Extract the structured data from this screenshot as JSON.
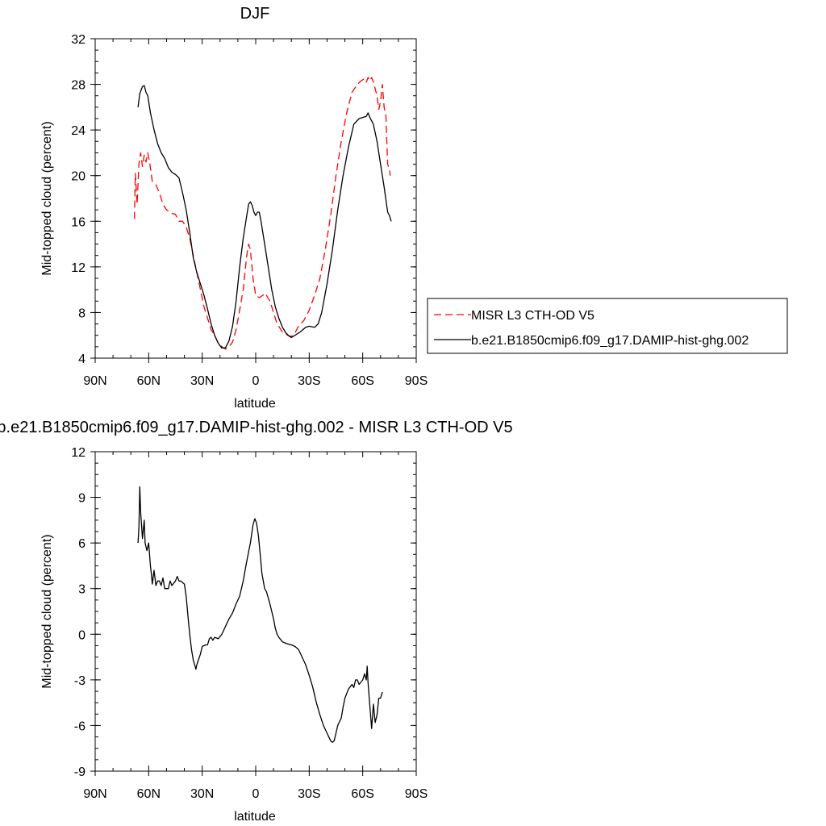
{
  "chart_data": [
    {
      "type": "line",
      "title": "DJF",
      "xlabel": "latitude",
      "ylabel": "Mid-topped cloud (percent)",
      "xlim": [
        90,
        -90
      ],
      "ylim": [
        4,
        32
      ],
      "xticks": [
        90,
        60,
        30,
        0,
        -30,
        -60,
        -90
      ],
      "xtick_labels": [
        "90N",
        "60N",
        "30N",
        "0",
        "30S",
        "60S",
        "90S"
      ],
      "yticks": [
        4,
        8,
        12,
        16,
        20,
        24,
        28,
        32
      ],
      "ytick_labels": [
        "4",
        "8",
        "12",
        "16",
        "20",
        "24",
        "28",
        "32"
      ],
      "legend": "right",
      "series": [
        {
          "name": "MISR L3 CTH-OD V5",
          "color": "#ff0000",
          "dash": "dashed",
          "points": [
            [
              68,
              16.2
            ],
            [
              67.5,
              20.2
            ],
            [
              66.5,
              17.5
            ],
            [
              65.5,
              21
            ],
            [
              64.5,
              22
            ],
            [
              63.5,
              20.8
            ],
            [
              62.5,
              21.8
            ],
            [
              61.5,
              21.2
            ],
            [
              60.5,
              22
            ],
            [
              59.5,
              21.2
            ],
            [
              58,
              19.5
            ],
            [
              56,
              19.2
            ],
            [
              54,
              18.5
            ],
            [
              52,
              17.5
            ],
            [
              50,
              17
            ],
            [
              47,
              16.7
            ],
            [
              45,
              16.6
            ],
            [
              43,
              16
            ],
            [
              41,
              16
            ],
            [
              39,
              15.5
            ],
            [
              37,
              14.5
            ],
            [
              35,
              13
            ],
            [
              33,
              11.5
            ],
            [
              31,
              10
            ],
            [
              29,
              8.5
            ],
            [
              27,
              7.5
            ],
            [
              25,
              6.5
            ],
            [
              23,
              6
            ],
            [
              21,
              5.3
            ],
            [
              19,
              5
            ],
            [
              17,
              4.8
            ],
            [
              15,
              5
            ],
            [
              13,
              5.4
            ],
            [
              11,
              6.5
            ],
            [
              9,
              8.2
            ],
            [
              7,
              10
            ],
            [
              5,
              13
            ],
            [
              4,
              14
            ],
            [
              3,
              13.5
            ],
            [
              1.5,
              11
            ],
            [
              0,
              9.5
            ],
            [
              -2,
              9.3
            ],
            [
              -4,
              9.5
            ],
            [
              -5,
              9.7
            ],
            [
              -6,
              9.5
            ],
            [
              -8,
              9
            ],
            [
              -10,
              8
            ],
            [
              -12,
              7
            ],
            [
              -15,
              6.3
            ],
            [
              -18,
              6
            ],
            [
              -20,
              5.9
            ],
            [
              -22,
              6.2
            ],
            [
              -24,
              6.8
            ],
            [
              -27,
              7.3
            ],
            [
              -30,
              8.2
            ],
            [
              -33,
              9.5
            ],
            [
              -36,
              11
            ],
            [
              -39,
              13.5
            ],
            [
              -42,
              16.5
            ],
            [
              -45,
              20
            ],
            [
              -48,
              23
            ],
            [
              -51,
              25.5
            ],
            [
              -54,
              27.3
            ],
            [
              -57,
              28
            ],
            [
              -59,
              28.3
            ],
            [
              -61,
              28.5
            ],
            [
              -62,
              28.2
            ],
            [
              -63,
              28.6
            ],
            [
              -64,
              28.3
            ],
            [
              -65,
              28.6
            ],
            [
              -66,
              28.2
            ],
            [
              -68,
              27
            ],
            [
              -69,
              25.8
            ],
            [
              -70,
              26.5
            ],
            [
              -71,
              28
            ],
            [
              -72,
              26
            ],
            [
              -73,
              25.3
            ],
            [
              -74,
              21
            ],
            [
              -75,
              20.5
            ],
            [
              -75.5,
              20
            ]
          ]
        },
        {
          "name": "b.e21.B1850cmip6.f09_g17.DAMIP-hist-ghg.002",
          "color": "#000000",
          "dash": "solid",
          "points": [
            [
              66,
              26
            ],
            [
              65,
              27.2
            ],
            [
              63.5,
              27.8
            ],
            [
              62.5,
              27.9
            ],
            [
              61.5,
              27.3
            ],
            [
              60.5,
              27
            ],
            [
              59,
              25.5
            ],
            [
              57,
              24
            ],
            [
              55,
              22.8
            ],
            [
              53,
              22
            ],
            [
              51,
              21.5
            ],
            [
              49,
              20.7
            ],
            [
              47,
              20.3
            ],
            [
              45,
              20.1
            ],
            [
              43,
              19.8
            ],
            [
              41,
              18.5
            ],
            [
              39,
              17
            ],
            [
              37,
              15
            ],
            [
              35,
              12.8
            ],
            [
              33,
              11.5
            ],
            [
              31,
              10.5
            ],
            [
              29,
              9.5
            ],
            [
              27,
              8.3
            ],
            [
              25,
              7
            ],
            [
              23,
              6
            ],
            [
              21,
              5.3
            ],
            [
              19,
              4.9
            ],
            [
              17,
              4.9
            ],
            [
              15,
              5.5
            ],
            [
              13,
              6.8
            ],
            [
              11,
              9
            ],
            [
              9,
              12
            ],
            [
              7,
              14.5
            ],
            [
              5,
              16.5
            ],
            [
              4,
              17.5
            ],
            [
              3,
              17.7
            ],
            [
              2,
              17.4
            ],
            [
              1,
              16.8
            ],
            [
              0,
              16.5
            ],
            [
              -1,
              16.8
            ],
            [
              -2,
              16.8
            ],
            [
              -3,
              16
            ],
            [
              -5,
              14
            ],
            [
              -7,
              12
            ],
            [
              -9,
              10
            ],
            [
              -11,
              8.5
            ],
            [
              -13,
              7.5
            ],
            [
              -15,
              6.7
            ],
            [
              -17,
              6.2
            ],
            [
              -19,
              5.9
            ],
            [
              -20,
              5.8
            ],
            [
              -22,
              6
            ],
            [
              -25,
              6.3
            ],
            [
              -28,
              6.7
            ],
            [
              -30,
              6.8
            ],
            [
              -33,
              6.7
            ],
            [
              -35,
              7
            ],
            [
              -37,
              8
            ],
            [
              -40,
              10.5
            ],
            [
              -43,
              13.5
            ],
            [
              -46,
              17
            ],
            [
              -49,
              20
            ],
            [
              -52,
              22.5
            ],
            [
              -55,
              24.5
            ],
            [
              -58,
              25
            ],
            [
              -60,
              25.1
            ],
            [
              -62,
              25.2
            ],
            [
              -63,
              25.5
            ],
            [
              -64,
              25.1
            ],
            [
              -66,
              24.5
            ],
            [
              -68,
              23
            ],
            [
              -70,
              21
            ],
            [
              -72,
              19
            ],
            [
              -74,
              16.8
            ],
            [
              -75,
              16.5
            ],
            [
              -76,
              16
            ]
          ]
        }
      ]
    },
    {
      "type": "line",
      "title": "b.e21.B1850cmip6.f09_g17.DAMIP-hist-ghg.002 - MISR L3 CTH-OD V5",
      "xlabel": "latitude",
      "ylabel": "Mid-topped cloud (percent)",
      "xlim": [
        90,
        -90
      ],
      "ylim": [
        -9,
        12
      ],
      "xticks": [
        90,
        60,
        30,
        0,
        -30,
        -60,
        -90
      ],
      "xtick_labels": [
        "90N",
        "60N",
        "30N",
        "0",
        "30S",
        "60S",
        "90S"
      ],
      "yticks": [
        -9,
        -6,
        -3,
        0,
        3,
        6,
        9,
        12
      ],
      "ytick_labels": [
        "-9",
        "-6",
        "-3",
        "0",
        "3",
        "6",
        "9",
        "12"
      ],
      "series": [
        {
          "color": "#000000",
          "dash": "solid",
          "points": [
            [
              66,
              6
            ],
            [
              65.5,
              7
            ],
            [
              65,
              9.7
            ],
            [
              64.5,
              8
            ],
            [
              63.5,
              6.3
            ],
            [
              62.5,
              7.5
            ],
            [
              62,
              6
            ],
            [
              61,
              5.5
            ],
            [
              60,
              6
            ],
            [
              59,
              4.5
            ],
            [
              58.5,
              4
            ],
            [
              58,
              3.3
            ],
            [
              57,
              4.2
            ],
            [
              56,
              3.2
            ],
            [
              55,
              3.5
            ],
            [
              54,
              3.5
            ],
            [
              53,
              3.2
            ],
            [
              52,
              3.7
            ],
            [
              51,
              3
            ],
            [
              49,
              3
            ],
            [
              48,
              3.5
            ],
            [
              47,
              3.2
            ],
            [
              45,
              3.5
            ],
            [
              44,
              3.8
            ],
            [
              43,
              3.5
            ],
            [
              42,
              3.5
            ],
            [
              40,
              3.3
            ],
            [
              39,
              2.5
            ],
            [
              38,
              1.2
            ],
            [
              37,
              0
            ],
            [
              36,
              -1
            ],
            [
              35,
              -1.7
            ],
            [
              33.5,
              -2.3
            ],
            [
              33,
              -2
            ],
            [
              31,
              -1.3
            ],
            [
              30,
              -0.8
            ],
            [
              28,
              -0.7
            ],
            [
              27,
              -0.7
            ],
            [
              26,
              -0.3
            ],
            [
              25,
              -0.2
            ],
            [
              24,
              -0.4
            ],
            [
              23,
              -0.2
            ],
            [
              21,
              -0.3
            ],
            [
              19,
              0
            ],
            [
              17,
              0.5
            ],
            [
              15,
              1
            ],
            [
              13,
              1.4
            ],
            [
              11,
              2
            ],
            [
              9,
              2.5
            ],
            [
              7,
              3.5
            ],
            [
              5,
              4.8
            ],
            [
              3,
              6
            ],
            [
              1.5,
              7.2
            ],
            [
              0.5,
              7.6
            ],
            [
              -0.5,
              7.3
            ],
            [
              -1.5,
              6.5
            ],
            [
              -2.5,
              5.3
            ],
            [
              -3.5,
              4
            ],
            [
              -5,
              3
            ],
            [
              -6,
              2.8
            ],
            [
              -7.5,
              2.2
            ],
            [
              -9,
              1.5
            ],
            [
              -10,
              1
            ],
            [
              -11,
              0.4
            ],
            [
              -12,
              0
            ],
            [
              -13,
              -0.2
            ],
            [
              -15,
              -0.5
            ],
            [
              -17,
              -0.6
            ],
            [
              -20,
              -0.7
            ],
            [
              -22,
              -0.8
            ],
            [
              -24,
              -1
            ],
            [
              -26,
              -1.5
            ],
            [
              -28,
              -2
            ],
            [
              -30,
              -2.7
            ],
            [
              -32,
              -3.5
            ],
            [
              -34,
              -4.5
            ],
            [
              -36,
              -5.3
            ],
            [
              -38,
              -6
            ],
            [
              -40,
              -6.5
            ],
            [
              -42,
              -7
            ],
            [
              -43,
              -7.1
            ],
            [
              -44,
              -7
            ],
            [
              -45,
              -6.5
            ],
            [
              -46,
              -6
            ],
            [
              -48,
              -5.5
            ],
            [
              -49,
              -4.8
            ],
            [
              -50,
              -4.2
            ],
            [
              -52,
              -3.6
            ],
            [
              -54,
              -3.3
            ],
            [
              -55,
              -3.5
            ],
            [
              -56,
              -3
            ],
            [
              -57,
              -3
            ],
            [
              -58,
              -3.3
            ],
            [
              -60,
              -3
            ],
            [
              -61,
              -2.6
            ],
            [
              -62,
              -3
            ],
            [
              -62.5,
              -2.1
            ],
            [
              -63,
              -3.2
            ],
            [
              -64,
              -4.7
            ],
            [
              -65,
              -6.2
            ],
            [
              -66,
              -4.6
            ],
            [
              -67,
              -5.8
            ],
            [
              -68,
              -5.3
            ],
            [
              -69,
              -4.2
            ],
            [
              -70,
              -4.2
            ],
            [
              -71,
              -3.8
            ]
          ]
        }
      ]
    }
  ]
}
